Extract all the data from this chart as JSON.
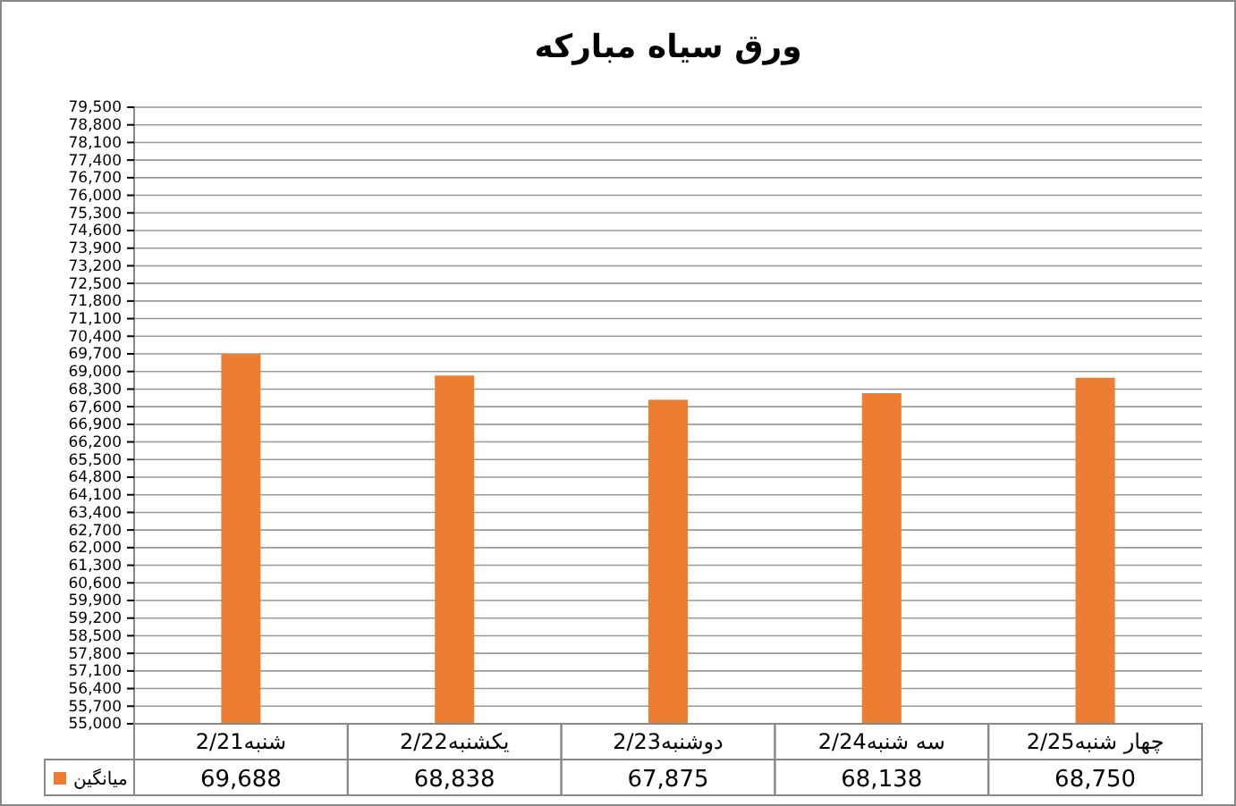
{
  "chart_data": {
    "type": "bar",
    "title": "ورق سیاه مبارکه",
    "categories": [
      "شنبه2/21",
      "یکشنبه2/22",
      "دوشنبه2/23",
      "سه شنبه2/24",
      "چهار شنبه2/25"
    ],
    "series": [
      {
        "name": "میانگین",
        "color": "#ed7d31",
        "values": [
          69688,
          68838,
          67875,
          68138,
          68750
        ],
        "value_labels": [
          "69,688",
          "68,838",
          "67,875",
          "68,138",
          "68,750"
        ]
      }
    ],
    "ylim": [
      55000,
      79500
    ],
    "yticks": [
      {
        "value": 55000,
        "label": "55,000"
      },
      {
        "value": 55700,
        "label": "55,700"
      },
      {
        "value": 56400,
        "label": "56,400"
      },
      {
        "value": 57100,
        "label": "57,100"
      },
      {
        "value": 57800,
        "label": "57,800"
      },
      {
        "value": 58500,
        "label": "58,500"
      },
      {
        "value": 59200,
        "label": "59,200"
      },
      {
        "value": 59900,
        "label": "59,900"
      },
      {
        "value": 60600,
        "label": "60,600"
      },
      {
        "value": 61300,
        "label": "61,300"
      },
      {
        "value": 62000,
        "label": "62,000"
      },
      {
        "value": 62700,
        "label": "62,700"
      },
      {
        "value": 63400,
        "label": "63,400"
      },
      {
        "value": 64100,
        "label": "64,100"
      },
      {
        "value": 64800,
        "label": "64,800"
      },
      {
        "value": 65500,
        "label": "65,500"
      },
      {
        "value": 66200,
        "label": "66,200"
      },
      {
        "value": 66900,
        "label": "66,900"
      },
      {
        "value": 67600,
        "label": "67,600"
      },
      {
        "value": 68300,
        "label": "68,300"
      },
      {
        "value": 69000,
        "label": "69,000"
      },
      {
        "value": 69700,
        "label": "69,700"
      },
      {
        "value": 70400,
        "label": "70,400"
      },
      {
        "value": 71100,
        "label": "71,100"
      },
      {
        "value": 71800,
        "label": "71,800"
      },
      {
        "value": 72500,
        "label": "72,500"
      },
      {
        "value": 73200,
        "label": "73,200"
      },
      {
        "value": 73900,
        "label": "73,900"
      },
      {
        "value": 74600,
        "label": "74,600"
      },
      {
        "value": 75300,
        "label": "75,300"
      },
      {
        "value": 76000,
        "label": "76,000"
      },
      {
        "value": 76700,
        "label": "76,700"
      },
      {
        "value": 77400,
        "label": "77,400"
      },
      {
        "value": 78100,
        "label": "78,100"
      },
      {
        "value": 78800,
        "label": "78,800"
      },
      {
        "value": 79500,
        "label": "79,500"
      }
    ],
    "grid": "y",
    "legend": "bottom left"
  }
}
